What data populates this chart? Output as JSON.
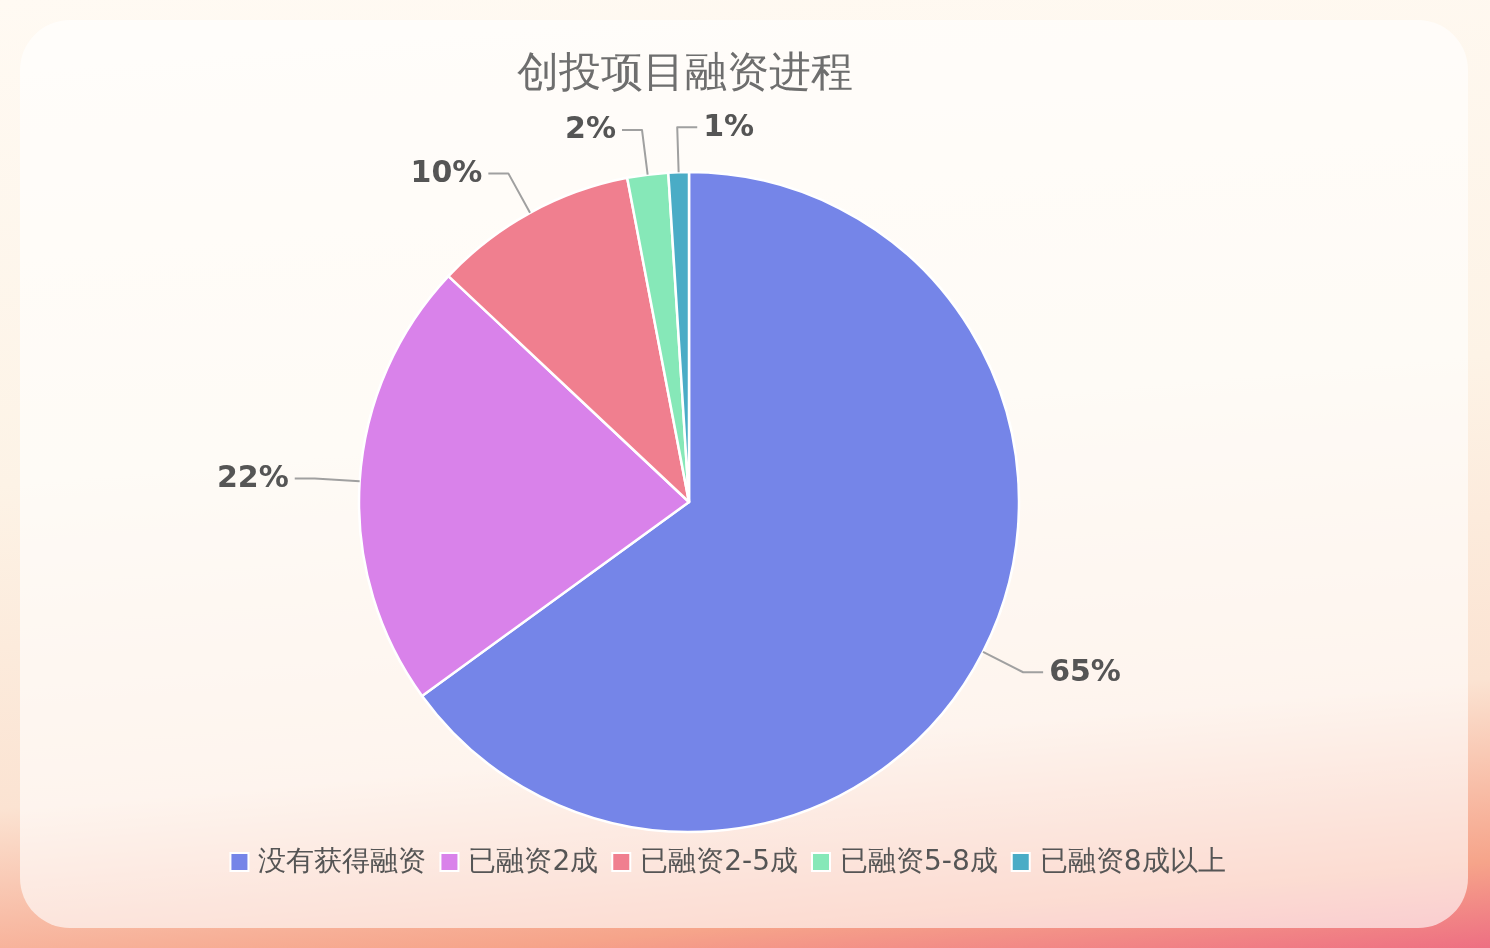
{
  "chart_data": {
    "type": "pie",
    "title": "创投项目融资进程",
    "categories": [
      "没有获得融资",
      "已融资2成",
      "已融资2-5成",
      "已融资5-8成",
      "已融资8成以上"
    ],
    "values": [
      65,
      22,
      10,
      2,
      1
    ],
    "colors": [
      "#7585e8",
      "#d982ea",
      "#f07f8f",
      "#86e8b8",
      "#4aacc6"
    ],
    "value_labels": [
      "65%",
      "22%",
      "10%",
      "2%",
      "1%"
    ],
    "legend": "bottom"
  }
}
